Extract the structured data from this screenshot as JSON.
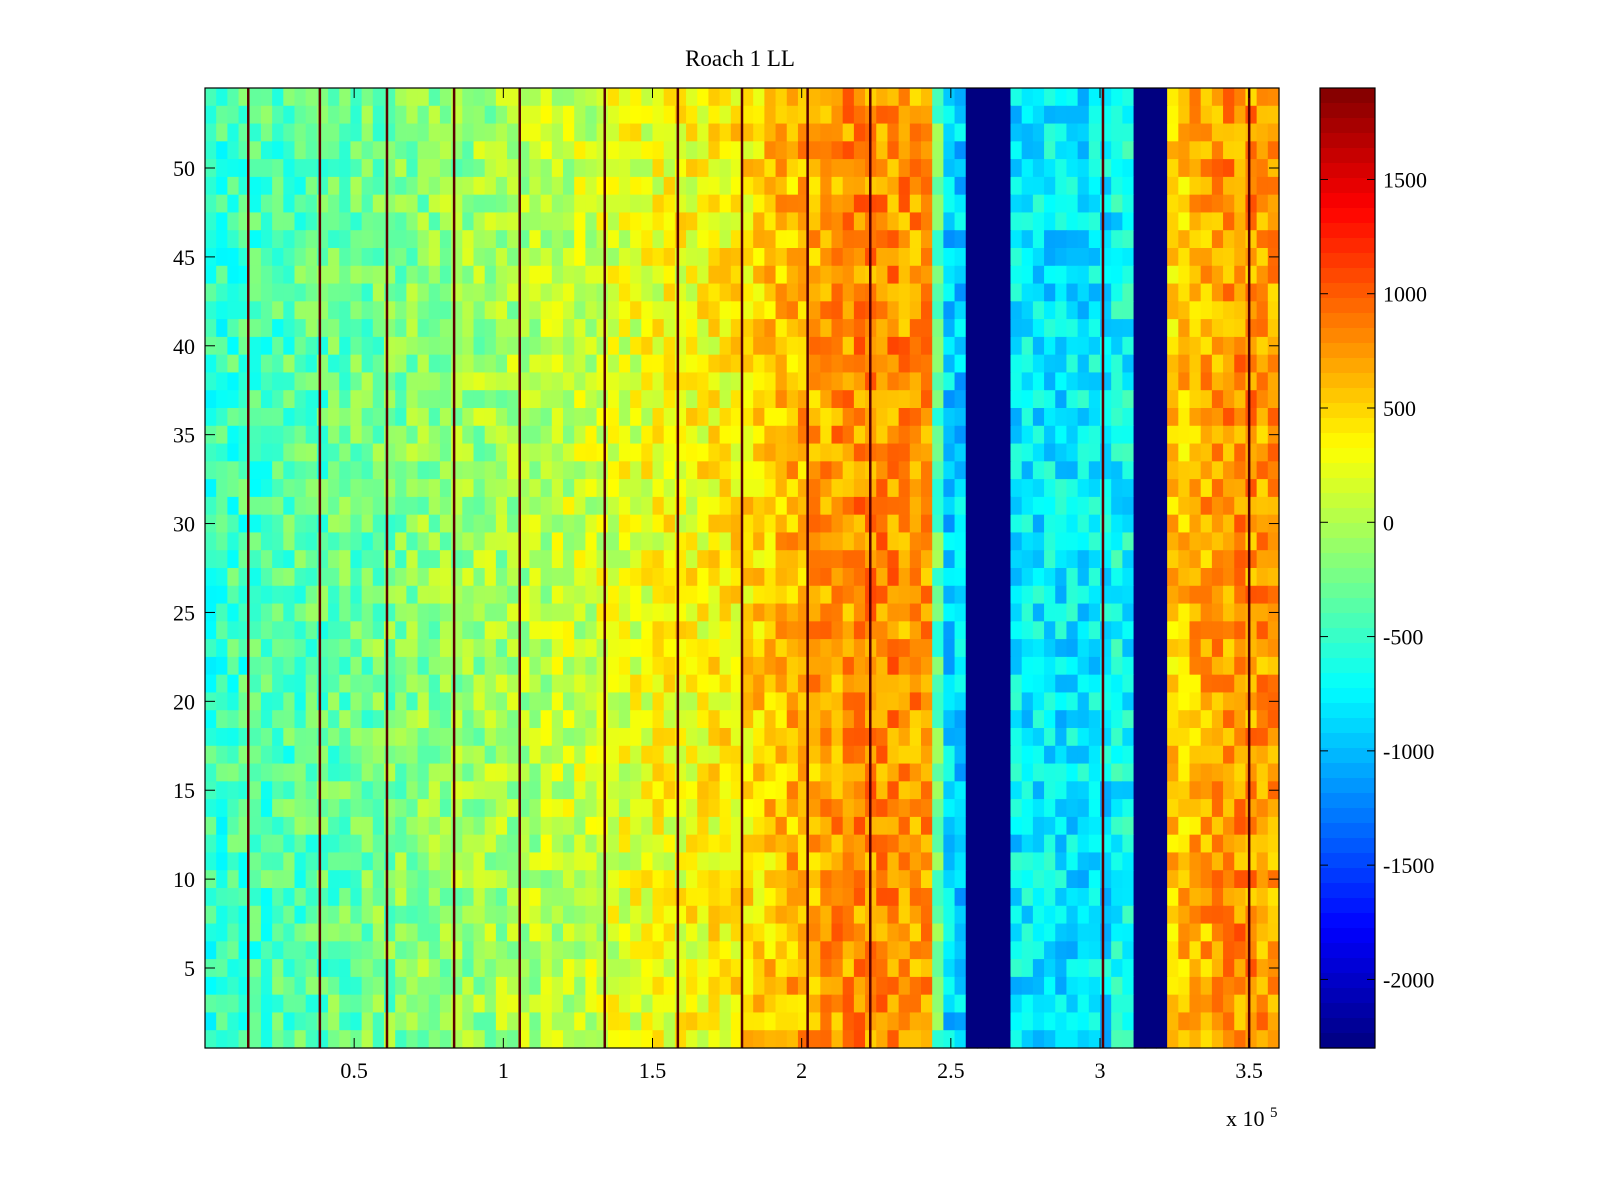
{
  "chart_data": {
    "type": "heatmap",
    "title": "Roach 1 LL",
    "xlabel": "",
    "ylabel": "",
    "x_multiplier_label": "x 10",
    "x_multiplier_exponent": "5",
    "xlim": [
      0,
      3.6
    ],
    "ylim": [
      0.5,
      54.5
    ],
    "xticks": [
      0.5,
      1,
      1.5,
      2,
      2.5,
      3,
      3.5
    ],
    "xtick_labels": [
      "0.5",
      "1",
      "1.5",
      "2",
      "2.5",
      "3",
      "3.5"
    ],
    "yticks": [
      5,
      10,
      15,
      20,
      25,
      30,
      35,
      40,
      45,
      50
    ],
    "ytick_labels": [
      "5",
      "10",
      "15",
      "20",
      "25",
      "30",
      "35",
      "40",
      "45",
      "50"
    ],
    "rows": 54,
    "columns": 96,
    "colormap": "jet",
    "clim": [
      -2300,
      1900
    ],
    "colorbar_ticks": [
      1500,
      1000,
      500,
      0,
      -500,
      -1000,
      -1500,
      -2000
    ],
    "colorbar_tick_labels": [
      "1500",
      "1000",
      "500",
      "0",
      "-500",
      "-1000",
      "-1500",
      "-2000"
    ],
    "column_profile_x": [
      0.0,
      0.1,
      0.5,
      0.75,
      1.0,
      1.25,
      1.5,
      1.75,
      1.95,
      2.05,
      2.2,
      2.3,
      2.45,
      2.46,
      2.55,
      2.56,
      2.7,
      2.71,
      3.03,
      3.04,
      3.1,
      3.11,
      3.22,
      3.23,
      3.3,
      3.45,
      3.6
    ],
    "column_profile_value": [
      -550,
      -450,
      -300,
      -150,
      -50,
      100,
      250,
      350,
      600,
      700,
      800,
      800,
      700,
      -900,
      -900,
      -2300,
      -2300,
      -800,
      -800,
      -700,
      -700,
      -2300,
      -2300,
      500,
      600,
      800,
      700
    ],
    "dark_lines_x": [
      0.145,
      0.385,
      0.61,
      0.835,
      1.055,
      1.34,
      1.585,
      1.8,
      2.02,
      2.23,
      3.01,
      3.5
    ],
    "noise_amplitude": 300,
    "colors": {
      "axis": "#000000",
      "background": "#ffffff",
      "jet_stops": [
        "#000080",
        "#0000ff",
        "#00ffff",
        "#ffff00",
        "#ff0000",
        "#800000"
      ]
    }
  }
}
